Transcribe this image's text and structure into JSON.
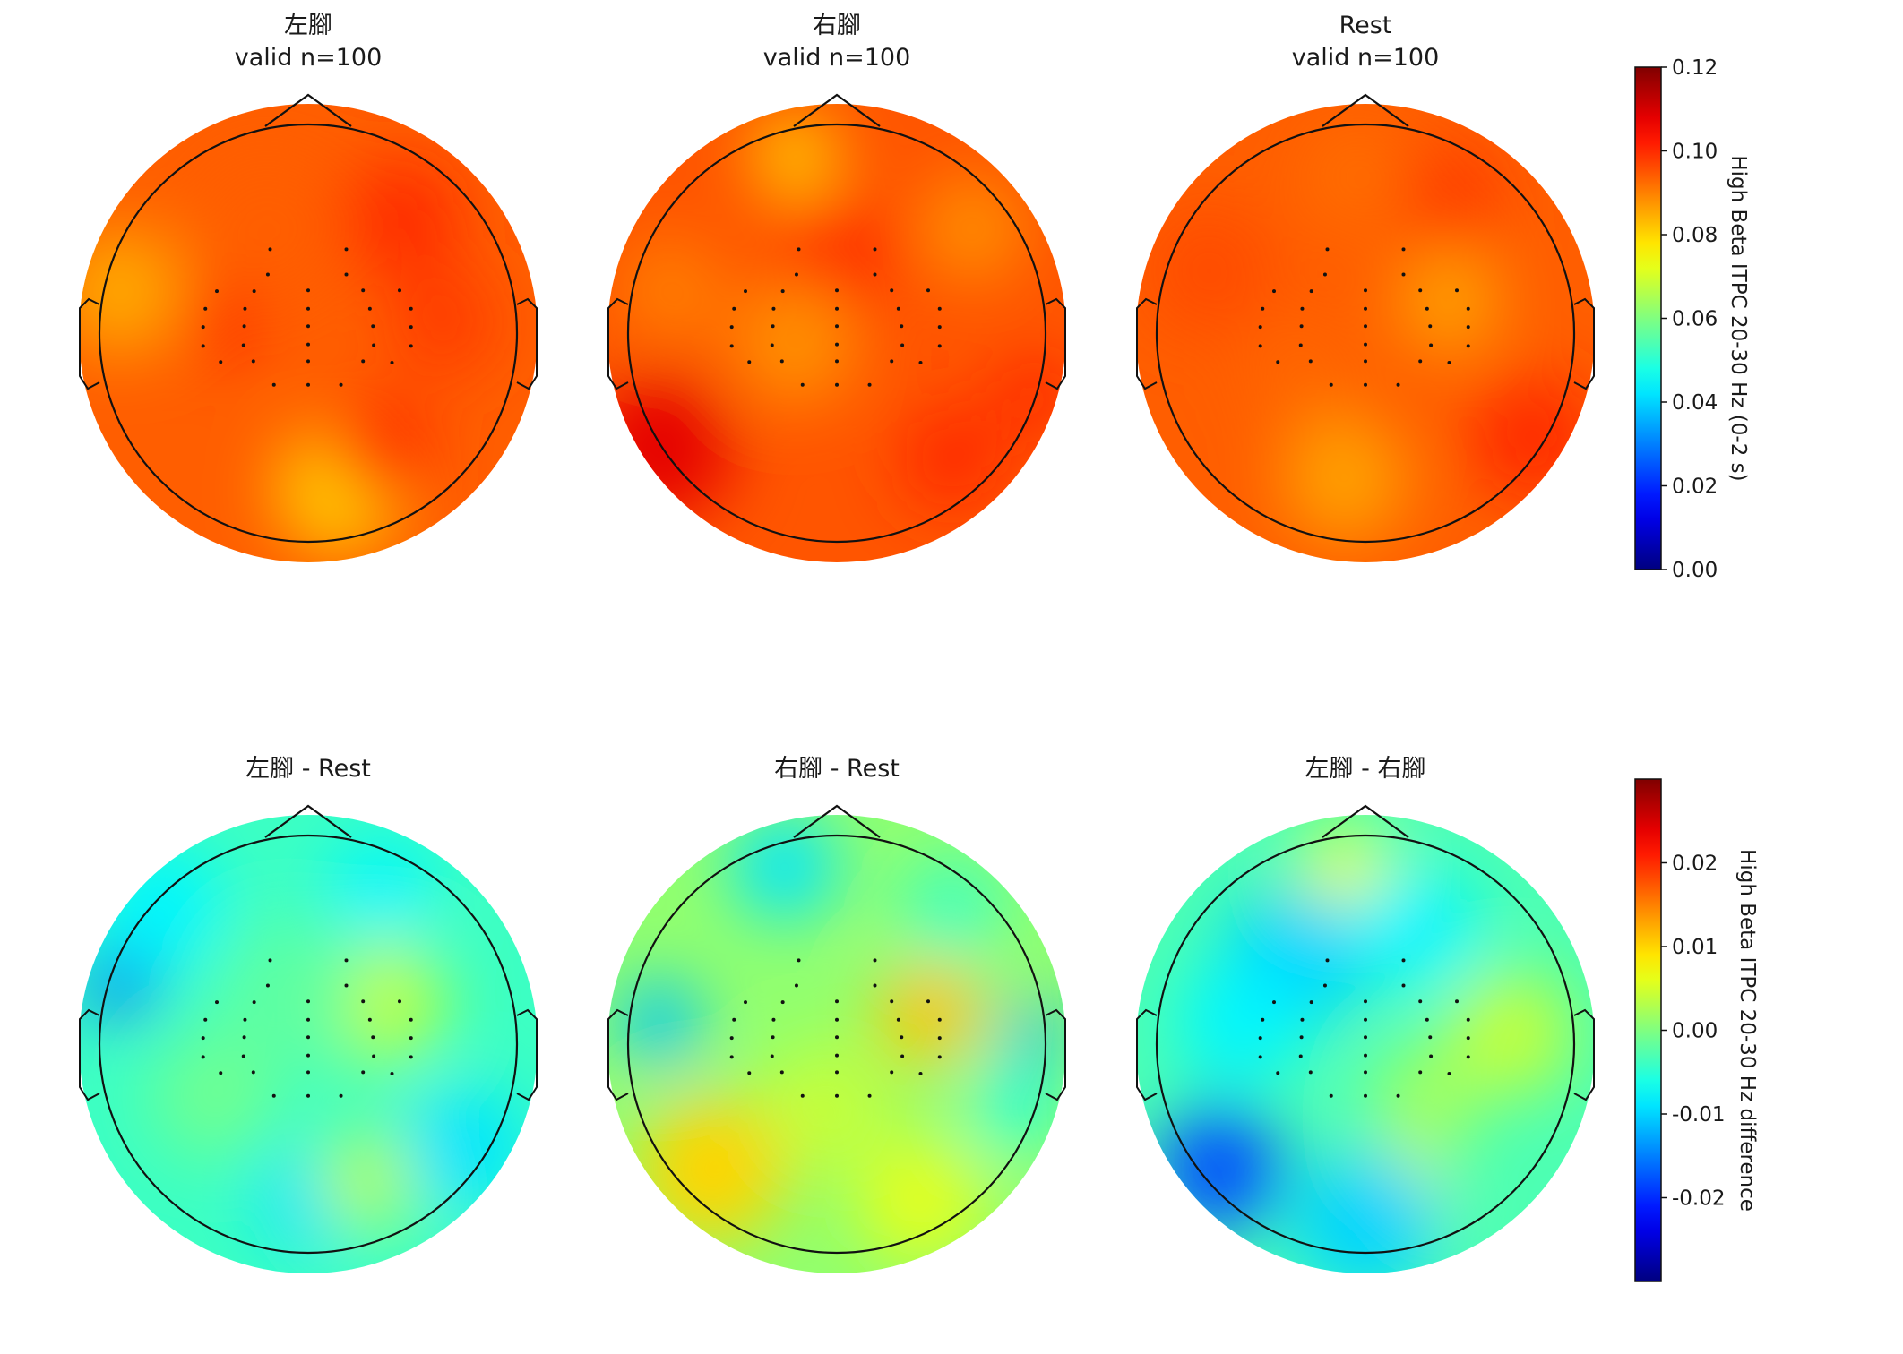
{
  "chart_data": [
    {
      "type": "heatmap",
      "subtype": "topomap",
      "title_line1": "左腳",
      "title_line2": "valid n=100",
      "colorbar": 0,
      "blobs": [
        [
          -0.42,
          0.05,
          0.17,
          0.102
        ],
        [
          0.15,
          -0.75,
          0.3,
          0.08
        ],
        [
          0.65,
          0.05,
          0.25,
          0.098
        ],
        [
          -0.9,
          0.2,
          0.3,
          0.085
        ],
        [
          0.45,
          0.55,
          0.28,
          0.1
        ],
        [
          0.35,
          -0.55,
          0.25,
          0.099
        ],
        [
          -0.2,
          0.5,
          0.35,
          0.094
        ]
      ],
      "base": 0.094
    },
    {
      "type": "heatmap",
      "subtype": "topomap",
      "title_line1": "右腳",
      "title_line2": "valid n=100",
      "colorbar": 0,
      "blobs": [
        [
          -0.85,
          -0.55,
          0.35,
          0.108
        ],
        [
          -0.2,
          0.85,
          0.2,
          0.08
        ],
        [
          0.0,
          0.35,
          0.3,
          0.1
        ],
        [
          0.55,
          -0.6,
          0.25,
          0.1
        ],
        [
          -0.2,
          -0.05,
          0.3,
          0.088
        ],
        [
          0.65,
          0.5,
          0.25,
          0.088
        ],
        [
          -0.8,
          0.2,
          0.25,
          0.09
        ],
        [
          0.95,
          -0.3,
          0.2,
          0.1
        ]
      ],
      "base": 0.095
    },
    {
      "type": "heatmap",
      "subtype": "topomap",
      "title_line1": "Rest",
      "title_line2": "valid n=100",
      "colorbar": 0,
      "blobs": [
        [
          0.4,
          0.15,
          0.25,
          0.086
        ],
        [
          0.4,
          0.65,
          0.25,
          0.098
        ],
        [
          -0.1,
          -0.7,
          0.3,
          0.086
        ],
        [
          0.8,
          -0.5,
          0.3,
          0.1
        ],
        [
          -0.75,
          0.3,
          0.3,
          0.096
        ],
        [
          -0.3,
          -0.2,
          0.25,
          0.093
        ],
        [
          -0.05,
          0.75,
          0.25,
          0.092
        ]
      ],
      "base": 0.094
    },
    {
      "type": "heatmap",
      "subtype": "topomap",
      "title_line1": "",
      "title_line2": "左腳 - Rest",
      "colorbar": 1,
      "blobs": [
        [
          -0.9,
          0.3,
          0.18,
          -0.016
        ],
        [
          -0.7,
          0.65,
          0.3,
          -0.008
        ],
        [
          0.35,
          0.2,
          0.3,
          0.004
        ],
        [
          0.0,
          -0.75,
          0.25,
          -0.009
        ],
        [
          0.3,
          -0.65,
          0.25,
          0.003
        ],
        [
          0.75,
          -0.5,
          0.3,
          -0.009
        ],
        [
          -0.1,
          0.25,
          0.35,
          -0.002
        ],
        [
          0.35,
          0.75,
          0.25,
          -0.008
        ],
        [
          -0.45,
          -0.25,
          0.3,
          -0.001
        ]
      ],
      "base": -0.004
    },
    {
      "type": "heatmap",
      "subtype": "topomap",
      "title_line1": "",
      "title_line2": "右腳 - Rest",
      "colorbar": 1,
      "blobs": [
        [
          0.45,
          0.15,
          0.25,
          0.011
        ],
        [
          -0.6,
          -0.6,
          0.35,
          0.01
        ],
        [
          -0.85,
          0.1,
          0.2,
          -0.011
        ],
        [
          -0.25,
          0.85,
          0.25,
          -0.009
        ],
        [
          0.55,
          0.65,
          0.25,
          -0.004
        ],
        [
          -0.05,
          -0.3,
          0.3,
          0.004
        ],
        [
          0.85,
          -0.3,
          0.2,
          -0.006
        ],
        [
          0.4,
          -0.75,
          0.3,
          0.006
        ],
        [
          0.95,
          0.05,
          0.15,
          -0.012
        ]
      ],
      "base": 0.001
    },
    {
      "type": "heatmap",
      "subtype": "topomap",
      "title_line1": "",
      "title_line2": "左腳 - 右腳",
      "colorbar": 1,
      "blobs": [
        [
          -0.7,
          -0.6,
          0.3,
          -0.018
        ],
        [
          -0.1,
          0.85,
          0.2,
          0.007
        ],
        [
          -0.35,
          0.4,
          0.35,
          -0.01
        ],
        [
          0.7,
          0.05,
          0.3,
          0.004
        ],
        [
          0.15,
          -0.7,
          0.25,
          0.006
        ],
        [
          0.0,
          -0.85,
          0.35,
          -0.01
        ],
        [
          0.25,
          0.55,
          0.3,
          -0.008
        ],
        [
          0.3,
          -0.25,
          0.25,
          0.002
        ],
        [
          -0.6,
          0.1,
          0.3,
          -0.008
        ]
      ],
      "base": -0.003
    }
  ],
  "sensors": [
    [
      -0.5,
      1.16
    ],
    [
      0.5,
      1.16
    ],
    [
      -0.53,
      0.83
    ],
    [
      0.5,
      0.83
    ],
    [
      -1.2,
      0.61
    ],
    [
      -0.71,
      0.61
    ],
    [
      0.0,
      0.62
    ],
    [
      0.72,
      0.62
    ],
    [
      1.2,
      0.62
    ],
    [
      -1.35,
      0.38
    ],
    [
      -0.83,
      0.38
    ],
    [
      0.0,
      0.38
    ],
    [
      0.81,
      0.38
    ],
    [
      1.35,
      0.38
    ],
    [
      -1.38,
      0.14
    ],
    [
      -0.84,
      0.15
    ],
    [
      0.0,
      0.15
    ],
    [
      0.85,
      0.15
    ],
    [
      1.35,
      0.14
    ],
    [
      -1.38,
      -0.11
    ],
    [
      -0.85,
      -0.1
    ],
    [
      0.0,
      -0.09
    ],
    [
      0.86,
      -0.1
    ],
    [
      1.35,
      -0.11
    ],
    [
      -1.15,
      -0.32
    ],
    [
      -0.72,
      -0.31
    ],
    [
      0.0,
      -0.31
    ],
    [
      0.72,
      -0.31
    ],
    [
      1.1,
      -0.33
    ],
    [
      -0.45,
      -0.62
    ],
    [
      0.0,
      -0.62
    ],
    [
      0.43,
      -0.62
    ]
  ],
  "colorbars": [
    {
      "label": "High Beta ITPC 20-30 Hz (0-2 s)",
      "vmin": 0.0,
      "vmax": 0.12,
      "ticks": [
        "0.00",
        "0.02",
        "0.04",
        "0.06",
        "0.08",
        "0.10",
        "0.12"
      ],
      "tick_values": [
        0.0,
        0.02,
        0.04,
        0.06,
        0.08,
        0.1,
        0.12
      ]
    },
    {
      "label": "High Beta ITPC 20-30 Hz difference",
      "vmin": -0.03,
      "vmax": 0.03,
      "ticks": [
        "-0.02",
        "-0.01",
        "0.00",
        "0.01",
        "0.02"
      ],
      "tick_values": [
        -0.02,
        -0.01,
        0.0,
        0.01,
        0.02
      ]
    }
  ],
  "colormap": "jet"
}
